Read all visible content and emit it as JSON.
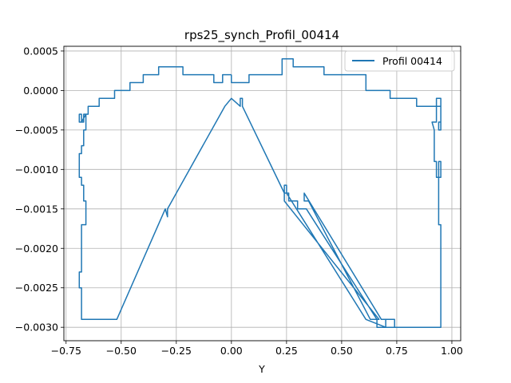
{
  "chart_data": {
    "type": "line",
    "title": "rps25_synch_Profil_00414",
    "xlabel": "Y",
    "ylabel": "",
    "xlim": [
      -0.76,
      1.04
    ],
    "ylim": [
      -0.00317,
      0.00056
    ],
    "xticks": [
      -0.75,
      -0.5,
      -0.25,
      0.0,
      0.25,
      0.5,
      0.75,
      1.0
    ],
    "xtick_labels": [
      "−0.75",
      "−0.50",
      "−0.25",
      "0.00",
      "0.25",
      "0.50",
      "0.75",
      "1.00"
    ],
    "yticks": [
      0.0005,
      0.0,
      -0.0005,
      -0.001,
      -0.0015,
      -0.002,
      -0.0025,
      -0.003
    ],
    "ytick_labels": [
      "0.0005",
      "0.0000",
      "−0.0005",
      "−0.0010",
      "−0.0015",
      "−0.0020",
      "−0.0025",
      "−0.0030"
    ],
    "grid": true,
    "legend_position": "top-right",
    "series": [
      {
        "name": "Profil 00414",
        "color": "#1f77b4",
        "x": [
          0.0,
          0.0,
          0.08,
          0.08,
          0.23,
          0.23,
          0.28,
          0.28,
          0.42,
          0.42,
          0.61,
          0.61,
          0.72,
          0.72,
          0.84,
          0.84,
          0.95,
          0.95,
          0.94,
          0.94,
          0.95,
          0.95,
          0.93,
          0.93,
          0.91,
          0.92,
          0.92,
          0.93,
          0.93,
          0.94,
          0.94,
          0.95,
          0.95,
          0.94,
          0.94,
          0.95,
          0.95,
          0.95,
          0.84,
          0.74,
          0.74,
          0.7,
          0.7,
          0.61,
          0.25,
          0.25,
          0.24,
          0.24,
          0.26,
          0.26,
          0.3,
          0.3,
          0.34,
          0.66,
          0.66,
          0.72,
          0.74,
          0.74,
          0.68,
          0.33,
          0.33,
          0.35,
          0.63,
          0.67,
          0.24,
          0.24,
          0.05,
          0.05,
          0.04,
          0.04,
          0.0,
          -0.03,
          -0.29,
          -0.29,
          -0.3,
          -0.52,
          -0.52,
          -0.68,
          -0.68,
          -0.69,
          -0.69,
          -0.68,
          -0.68,
          -0.66,
          -0.66,
          -0.67,
          -0.67,
          -0.68,
          -0.68,
          -0.69,
          -0.69,
          -0.68,
          -0.68,
          -0.67,
          -0.67,
          -0.66,
          -0.66,
          -0.67,
          -0.67,
          -0.68,
          -0.68,
          -0.69,
          -0.69,
          -0.68,
          -0.66,
          -0.66,
          -0.65,
          -0.65,
          -0.6,
          -0.6,
          -0.53,
          -0.53,
          -0.46,
          -0.46,
          -0.4,
          -0.4,
          -0.33,
          -0.33,
          -0.22,
          -0.22,
          -0.08,
          -0.08,
          -0.04,
          -0.04,
          0.0,
          0.0
        ],
        "y": [
          0.0002,
          0.0001,
          0.0001,
          0.0002,
          0.0002,
          0.0004,
          0.0004,
          0.0003,
          0.0003,
          0.0002,
          0.0002,
          0.0,
          0.0,
          -0.0001,
          -0.0001,
          -0.0002,
          -0.0002,
          -0.0004,
          -0.0004,
          -0.0005,
          -0.0005,
          -0.0001,
          -0.0001,
          -0.0004,
          -0.0004,
          -0.0005,
          -0.0009,
          -0.0009,
          -0.0011,
          -0.0011,
          -0.0009,
          -0.0009,
          -0.0011,
          -0.0011,
          -0.0017,
          -0.0017,
          -0.002,
          -0.003,
          -0.003,
          -0.003,
          -0.0029,
          -0.0029,
          -0.003,
          -0.0029,
          -0.0013,
          -0.0012,
          -0.0012,
          -0.0013,
          -0.0013,
          -0.0014,
          -0.0014,
          -0.0015,
          -0.0015,
          -0.0029,
          -0.003,
          -0.003,
          -0.003,
          -0.0029,
          -0.0029,
          -0.0013,
          -0.0014,
          -0.0014,
          -0.0029,
          -0.0029,
          -0.0014,
          -0.0013,
          -0.0002,
          -0.0001,
          -0.0001,
          -0.0002,
          -0.0001,
          -0.0002,
          -0.0015,
          -0.0016,
          -0.0015,
          -0.0029,
          -0.0029,
          -0.0029,
          -0.0025,
          -0.0025,
          -0.0023,
          -0.0023,
          -0.0017,
          -0.0017,
          -0.0014,
          -0.0014,
          -0.0012,
          -0.0012,
          -0.0011,
          -0.0011,
          -0.0008,
          -0.0008,
          -0.0007,
          -0.0007,
          -0.0005,
          -0.0005,
          -0.0003,
          -0.0003,
          -0.0004,
          -0.0004,
          -0.0003,
          -0.0003,
          -0.0004,
          -0.0004,
          -0.0003,
          -0.0003,
          -0.0003,
          -0.0002,
          -0.0002,
          -0.0001,
          -0.0001,
          0.0,
          0.0,
          0.0001,
          0.0001,
          0.0002,
          0.0002,
          0.0003,
          0.0003,
          0.0002,
          0.0002,
          0.0001,
          0.0001,
          0.0002,
          0.0002,
          0.0002
        ]
      }
    ]
  }
}
